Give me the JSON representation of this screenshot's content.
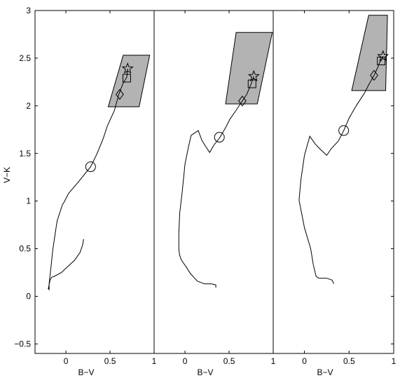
{
  "chart_data": {
    "type": "line",
    "ylabel": "V−K",
    "ylim": [
      -0.6,
      3.0
    ],
    "yticks": [
      -0.5,
      0,
      0.5,
      1,
      1.5,
      2,
      2.5,
      3
    ],
    "ytick_labels": [
      "−0.5",
      "0",
      "0.5",
      "1",
      "1.5",
      "2",
      "2.5",
      "3"
    ],
    "marker_legend": [
      "circle",
      "diamond",
      "square",
      "star"
    ],
    "panels": [
      {
        "xlabel": "B−V",
        "xlim": [
          -0.35,
          1.0
        ],
        "xticks": [
          0,
          0.5,
          1
        ],
        "xtick_labels": [
          "0",
          "0.5",
          "1"
        ],
        "track": [
          [
            0.2,
            0.6
          ],
          [
            0.19,
            0.54
          ],
          [
            0.16,
            0.46
          ],
          [
            0.1,
            0.38
          ],
          [
            0.03,
            0.32
          ],
          [
            -0.05,
            0.25
          ],
          [
            -0.13,
            0.21
          ],
          [
            -0.16,
            0.2
          ],
          [
            -0.18,
            0.17
          ],
          [
            -0.19,
            0.12
          ],
          [
            -0.2,
            0.08
          ],
          [
            -0.19,
            0.07
          ],
          [
            -0.19,
            0.13
          ],
          [
            -0.17,
            0.3
          ],
          [
            -0.15,
            0.48
          ],
          [
            -0.12,
            0.67
          ],
          [
            -0.1,
            0.79
          ],
          [
            -0.04,
            0.96
          ],
          [
            -0.02,
            0.99
          ],
          [
            0.03,
            1.08
          ],
          [
            0.15,
            1.21
          ],
          [
            0.28,
            1.36
          ],
          [
            0.35,
            1.49
          ],
          [
            0.42,
            1.65
          ],
          [
            0.47,
            1.79
          ],
          [
            0.55,
            1.95
          ],
          [
            0.6,
            2.12
          ],
          [
            0.65,
            2.24
          ],
          [
            0.69,
            2.3
          ],
          [
            0.7,
            2.39
          ]
        ],
        "polygon": [
          [
            0.48,
            1.99
          ],
          [
            0.65,
            2.53
          ],
          [
            0.95,
            2.53
          ],
          [
            0.83,
            1.99
          ]
        ],
        "markers": [
          {
            "shape": "circle",
            "x": 0.28,
            "y": 1.36
          },
          {
            "shape": "diamond",
            "x": 0.61,
            "y": 2.12
          },
          {
            "shape": "square",
            "x": 0.69,
            "y": 2.29
          },
          {
            "shape": "star",
            "x": 0.7,
            "y": 2.39
          }
        ]
      },
      {
        "xlabel": "B−V",
        "xlim": [
          -0.35,
          1.0
        ],
        "xticks": [
          0,
          0.5,
          1
        ],
        "xtick_labels": [
          "0",
          "0.5",
          "1"
        ],
        "track": [
          [
            0.35,
            0.09
          ],
          [
            0.35,
            0.12
          ],
          [
            0.3,
            0.13
          ],
          [
            0.22,
            0.13
          ],
          [
            0.14,
            0.16
          ],
          [
            0.11,
            0.19
          ],
          [
            0.06,
            0.24
          ],
          [
            0.02,
            0.3
          ],
          [
            -0.04,
            0.38
          ],
          [
            -0.06,
            0.43
          ],
          [
            -0.07,
            0.49
          ],
          [
            -0.07,
            0.66
          ],
          [
            -0.06,
            0.87
          ],
          [
            -0.03,
            1.11
          ],
          [
            0.0,
            1.39
          ],
          [
            0.04,
            1.57
          ],
          [
            0.07,
            1.69
          ],
          [
            0.15,
            1.74
          ],
          [
            0.19,
            1.64
          ],
          [
            0.23,
            1.58
          ],
          [
            0.28,
            1.51
          ],
          [
            0.33,
            1.59
          ],
          [
            0.39,
            1.66
          ],
          [
            0.46,
            1.77
          ],
          [
            0.51,
            1.86
          ],
          [
            0.57,
            1.94
          ],
          [
            0.65,
            2.05
          ],
          [
            0.7,
            2.12
          ],
          [
            0.75,
            2.23
          ],
          [
            0.78,
            2.31
          ]
        ],
        "polygon": [
          [
            0.46,
            2.02
          ],
          [
            0.58,
            2.77
          ],
          [
            0.99,
            2.77
          ],
          [
            0.82,
            2.02
          ]
        ],
        "markers": [
          {
            "shape": "circle",
            "x": 0.39,
            "y": 1.67
          },
          {
            "shape": "diamond",
            "x": 0.65,
            "y": 2.05
          },
          {
            "shape": "square",
            "x": 0.76,
            "y": 2.23
          },
          {
            "shape": "star",
            "x": 0.78,
            "y": 2.31
          }
        ]
      },
      {
        "xlabel": "B−V",
        "xlim": [
          -0.35,
          1.0
        ],
        "xticks": [
          0,
          0.5,
          1
        ],
        "xtick_labels": [
          "0",
          "0.5",
          "1"
        ],
        "track": [
          [
            0.33,
            0.13
          ],
          [
            0.31,
            0.17
          ],
          [
            0.25,
            0.19
          ],
          [
            0.16,
            0.19
          ],
          [
            0.13,
            0.21
          ],
          [
            0.1,
            0.33
          ],
          [
            0.07,
            0.5
          ],
          [
            0.0,
            0.72
          ],
          [
            -0.06,
            1.01
          ],
          [
            -0.04,
            1.22
          ],
          [
            0.0,
            1.48
          ],
          [
            0.03,
            1.58
          ],
          [
            0.06,
            1.68
          ],
          [
            0.12,
            1.6
          ],
          [
            0.17,
            1.55
          ],
          [
            0.25,
            1.48
          ],
          [
            0.3,
            1.55
          ],
          [
            0.38,
            1.63
          ],
          [
            0.44,
            1.74
          ],
          [
            0.5,
            1.87
          ],
          [
            0.58,
            2.0
          ],
          [
            0.67,
            2.13
          ],
          [
            0.72,
            2.22
          ],
          [
            0.78,
            2.32
          ],
          [
            0.82,
            2.4
          ],
          [
            0.84,
            2.45
          ],
          [
            0.86,
            2.48
          ],
          [
            0.88,
            2.52
          ]
        ],
        "polygon": [
          [
            0.53,
            2.16
          ],
          [
            0.72,
            2.95
          ],
          [
            0.93,
            2.95
          ],
          [
            0.91,
            2.16
          ]
        ],
        "markers": [
          {
            "shape": "circle",
            "x": 0.44,
            "y": 1.74
          },
          {
            "shape": "diamond",
            "x": 0.78,
            "y": 2.32
          },
          {
            "shape": "square",
            "x": 0.86,
            "y": 2.47
          },
          {
            "shape": "star",
            "x": 0.88,
            "y": 2.52
          }
        ]
      }
    ]
  }
}
